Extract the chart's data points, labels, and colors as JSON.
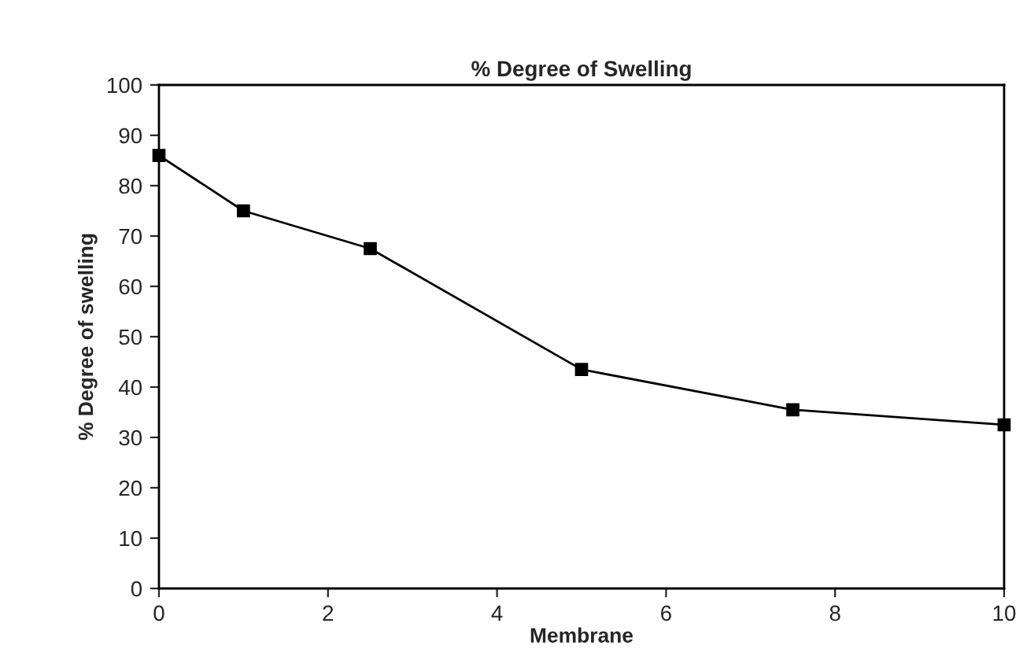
{
  "chart_data": {
    "type": "line",
    "title": "% Degree of Swelling",
    "xlabel": "Membrane",
    "ylabel": "% Degree of swelling",
    "x": [
      0,
      1,
      2.5,
      5,
      7.5,
      10
    ],
    "series": [
      {
        "color": "#000000",
        "values": [
          86,
          75,
          67.5,
          43.5,
          35.5,
          32.5
        ]
      }
    ],
    "xlim": [
      0,
      10
    ],
    "xticks": [
      0,
      2,
      4,
      6,
      8,
      10
    ],
    "ylim": [
      0,
      100
    ],
    "yticks": [
      0,
      10,
      20,
      30,
      40,
      50,
      60,
      70,
      80,
      90,
      100
    ],
    "grid": false,
    "legend": false,
    "marker": "square",
    "line_style": "solid"
  }
}
